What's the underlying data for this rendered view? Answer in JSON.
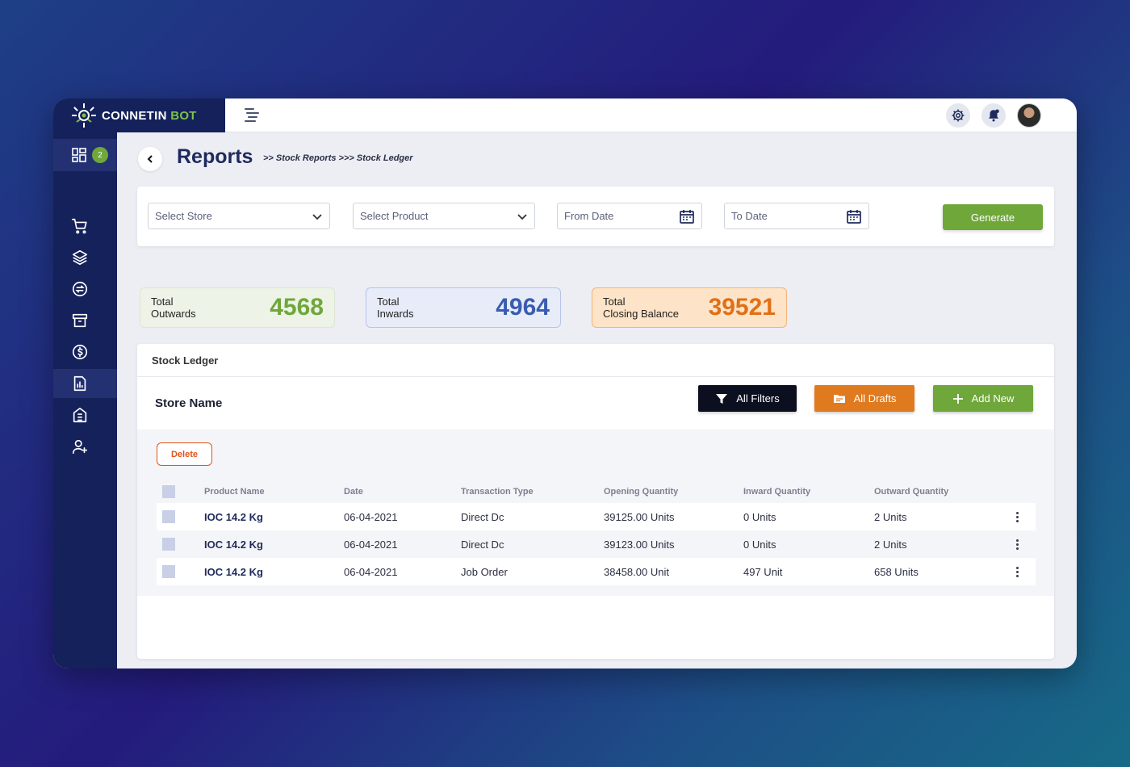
{
  "brand": {
    "name_main": "CONNETIN",
    "name_accent": "BOT"
  },
  "sidebar": {
    "dashboard_badge": "2",
    "items": [
      {
        "icon": "cart-icon"
      },
      {
        "icon": "layers-icon"
      },
      {
        "icon": "exchange-icon"
      },
      {
        "icon": "archive-icon"
      },
      {
        "icon": "currency-icon"
      },
      {
        "icon": "report-icon",
        "active": true
      },
      {
        "icon": "building-icon"
      },
      {
        "icon": "add-user-icon"
      }
    ]
  },
  "header": {
    "title": "Reports",
    "breadcrumb": ">> Stock Reports >>> Stock Ledger"
  },
  "filters": {
    "store_placeholder": "Select  Store",
    "product_placeholder": "Select  Product",
    "from_date_placeholder": "From Date",
    "to_date_placeholder": "To Date",
    "generate_label": "Generate"
  },
  "stats": {
    "outwards": {
      "label_line1": "Total",
      "label_line2": "Outwards",
      "value": "4568",
      "color": "#6fa73b"
    },
    "inwards": {
      "label_line1": "Total",
      "label_line2": "Inwards",
      "value": "4964",
      "color": "#3a5cb0"
    },
    "closing": {
      "label_line1": "Total",
      "label_line2": "Closing Balance",
      "value": "39521",
      "color": "#e07016"
    }
  },
  "ledger": {
    "title": "Stock Ledger",
    "store_name": "Store Name",
    "all_filters_label": "All Filters",
    "all_drafts_label": "All Drafts",
    "add_new_label": "Add New",
    "delete_label": "Delete",
    "columns": [
      "Product Name",
      "Date",
      "Transaction Type",
      "Opening Quantity",
      "Inward Quantity",
      "Outward Quantity"
    ],
    "rows": [
      {
        "product": "IOC 14.2 Kg",
        "date": "06-04-2021",
        "type": "Direct Dc",
        "opening": "39125.00 Units",
        "inward": "0 Units",
        "outward": "2 Units"
      },
      {
        "product": "IOC 14.2 Kg",
        "date": "06-04-2021",
        "type": "Direct Dc",
        "opening": "39123.00 Units",
        "inward": "0 Units",
        "outward": "2 Units"
      },
      {
        "product": "IOC 14.2 Kg",
        "date": "06-04-2021",
        "type": "Job Order",
        "opening": "38458.00 Unit",
        "inward": "497 Unit",
        "outward": "658 Units"
      }
    ]
  }
}
